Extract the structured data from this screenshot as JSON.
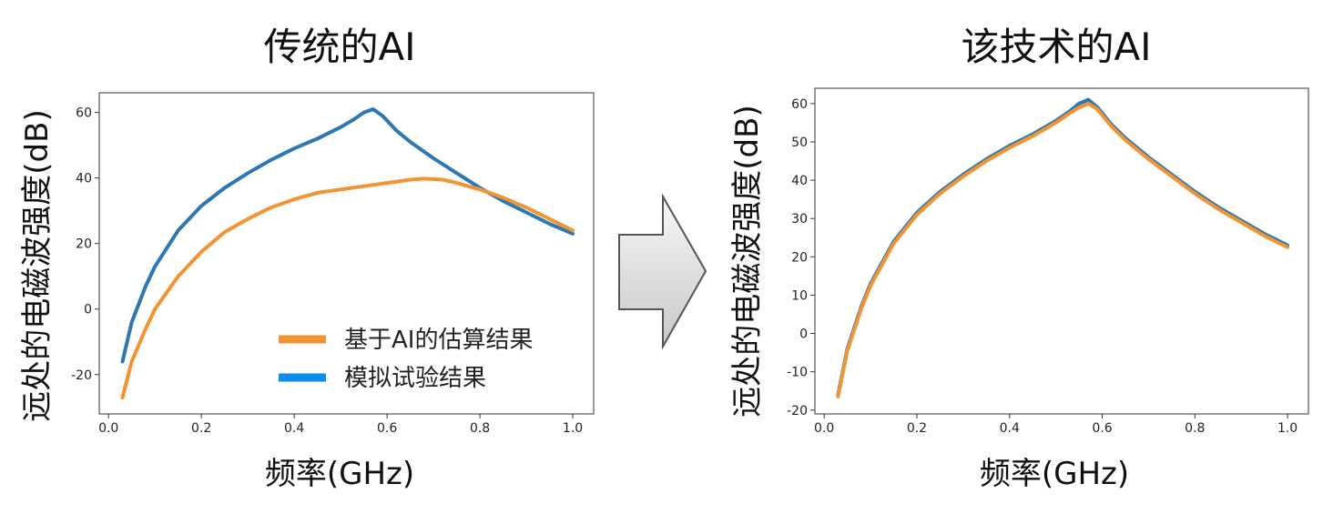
{
  "colors": {
    "ai_estimate": "#f39433",
    "test_result": "#2d77b4",
    "test_legend": "#0b8ded",
    "arrow_fill_light": "#f7f7f7",
    "arrow_fill_dark": "#c8c8c8",
    "arrow_stroke": "#555555"
  },
  "chart_data": [
    {
      "type": "line",
      "title": "传统的AI",
      "xlabel": "频率(GHz)",
      "ylabel": "远处的电磁波强度(dB)",
      "xlim": [
        -0.02,
        1.045
      ],
      "ylim": [
        -32,
        66
      ],
      "xticks": [
        0.0,
        0.2,
        0.4,
        0.6,
        0.8,
        1.0
      ],
      "xtick_labels": [
        "0.0",
        "0.2",
        "0.4",
        "0.6",
        "0.8",
        "1.0"
      ],
      "yticks": [
        -20,
        0,
        20,
        40,
        60
      ],
      "ytick_labels": [
        "-20",
        "0",
        "20",
        "40",
        "60"
      ],
      "grid": false,
      "legend": "lower-right",
      "series": [
        {
          "name": "模拟试验结果",
          "color_key": "test_result",
          "x": [
            0.03,
            0.05,
            0.08,
            0.1,
            0.15,
            0.2,
            0.25,
            0.3,
            0.35,
            0.4,
            0.45,
            0.5,
            0.53,
            0.55,
            0.57,
            0.59,
            0.62,
            0.65,
            0.7,
            0.75,
            0.8,
            0.85,
            0.9,
            0.95,
            1.0
          ],
          "y": [
            -16,
            -4,
            7,
            13,
            24,
            31.5,
            37,
            41.5,
            45.5,
            49,
            52,
            55.5,
            58,
            60,
            61,
            59,
            54.5,
            51,
            46,
            41.5,
            37,
            33,
            29.5,
            26,
            23
          ]
        },
        {
          "name": "基于AI的估算结果",
          "color_key": "ai_estimate",
          "x": [
            0.03,
            0.05,
            0.08,
            0.1,
            0.15,
            0.2,
            0.25,
            0.3,
            0.35,
            0.4,
            0.45,
            0.5,
            0.55,
            0.6,
            0.65,
            0.68,
            0.72,
            0.75,
            0.8,
            0.85,
            0.9,
            0.95,
            1.0
          ],
          "y": [
            -27,
            -16,
            -6,
            0,
            10,
            17.5,
            23.5,
            27.5,
            31,
            33.5,
            35.5,
            36.5,
            37.5,
            38.5,
            39.5,
            39.8,
            39.5,
            38.5,
            36.5,
            34,
            31,
            27.5,
            24
          ]
        }
      ]
    },
    {
      "type": "line",
      "title": "该技术的AI",
      "xlabel": "频率(GHz)",
      "ylabel": "远处的电磁波强度(dB)",
      "xlim": [
        -0.02,
        1.045
      ],
      "ylim": [
        -21,
        64
      ],
      "xticks": [
        0.0,
        0.2,
        0.4,
        0.6,
        0.8,
        1.0
      ],
      "xtick_labels": [
        "0.0",
        "0.2",
        "0.4",
        "0.6",
        "0.8",
        "1.0"
      ],
      "yticks": [
        -20,
        -10,
        0,
        10,
        20,
        30,
        40,
        50,
        60
      ],
      "ytick_labels": [
        "-20",
        "-10",
        "0",
        "10",
        "20",
        "30",
        "40",
        "50",
        "60"
      ],
      "grid": false,
      "legend": "none",
      "series": [
        {
          "name": "模拟试验结果",
          "color_key": "test_result",
          "x": [
            0.03,
            0.05,
            0.08,
            0.1,
            0.15,
            0.2,
            0.25,
            0.3,
            0.35,
            0.4,
            0.45,
            0.5,
            0.53,
            0.55,
            0.57,
            0.59,
            0.62,
            0.65,
            0.7,
            0.75,
            0.8,
            0.85,
            0.9,
            0.95,
            1.0
          ],
          "y": [
            -16,
            -4,
            7,
            13,
            24,
            31.5,
            37,
            41.5,
            45.5,
            49,
            52,
            55.5,
            58,
            60,
            61,
            59,
            54.5,
            51,
            46,
            41.5,
            37,
            33,
            29.5,
            26,
            23
          ]
        },
        {
          "name": "基于AI的估算结果",
          "color_key": "ai_estimate",
          "x": [
            0.03,
            0.05,
            0.08,
            0.1,
            0.15,
            0.2,
            0.25,
            0.3,
            0.35,
            0.4,
            0.45,
            0.5,
            0.53,
            0.55,
            0.57,
            0.59,
            0.62,
            0.65,
            0.7,
            0.75,
            0.8,
            0.85,
            0.9,
            0.95,
            1.0
          ],
          "y": [
            -16.5,
            -4.5,
            6.5,
            12.5,
            23.5,
            31,
            36.5,
            41,
            45,
            48.5,
            51.5,
            55,
            57.5,
            59,
            60,
            58.5,
            54,
            50.5,
            45.5,
            41,
            36.5,
            32.5,
            29,
            25.5,
            22.5
          ]
        }
      ]
    }
  ],
  "legend_items": [
    {
      "label": "基于AI的估算结果",
      "color_key": "ai_estimate"
    },
    {
      "label": "模拟试验结果",
      "color_key": "test_legend"
    }
  ]
}
